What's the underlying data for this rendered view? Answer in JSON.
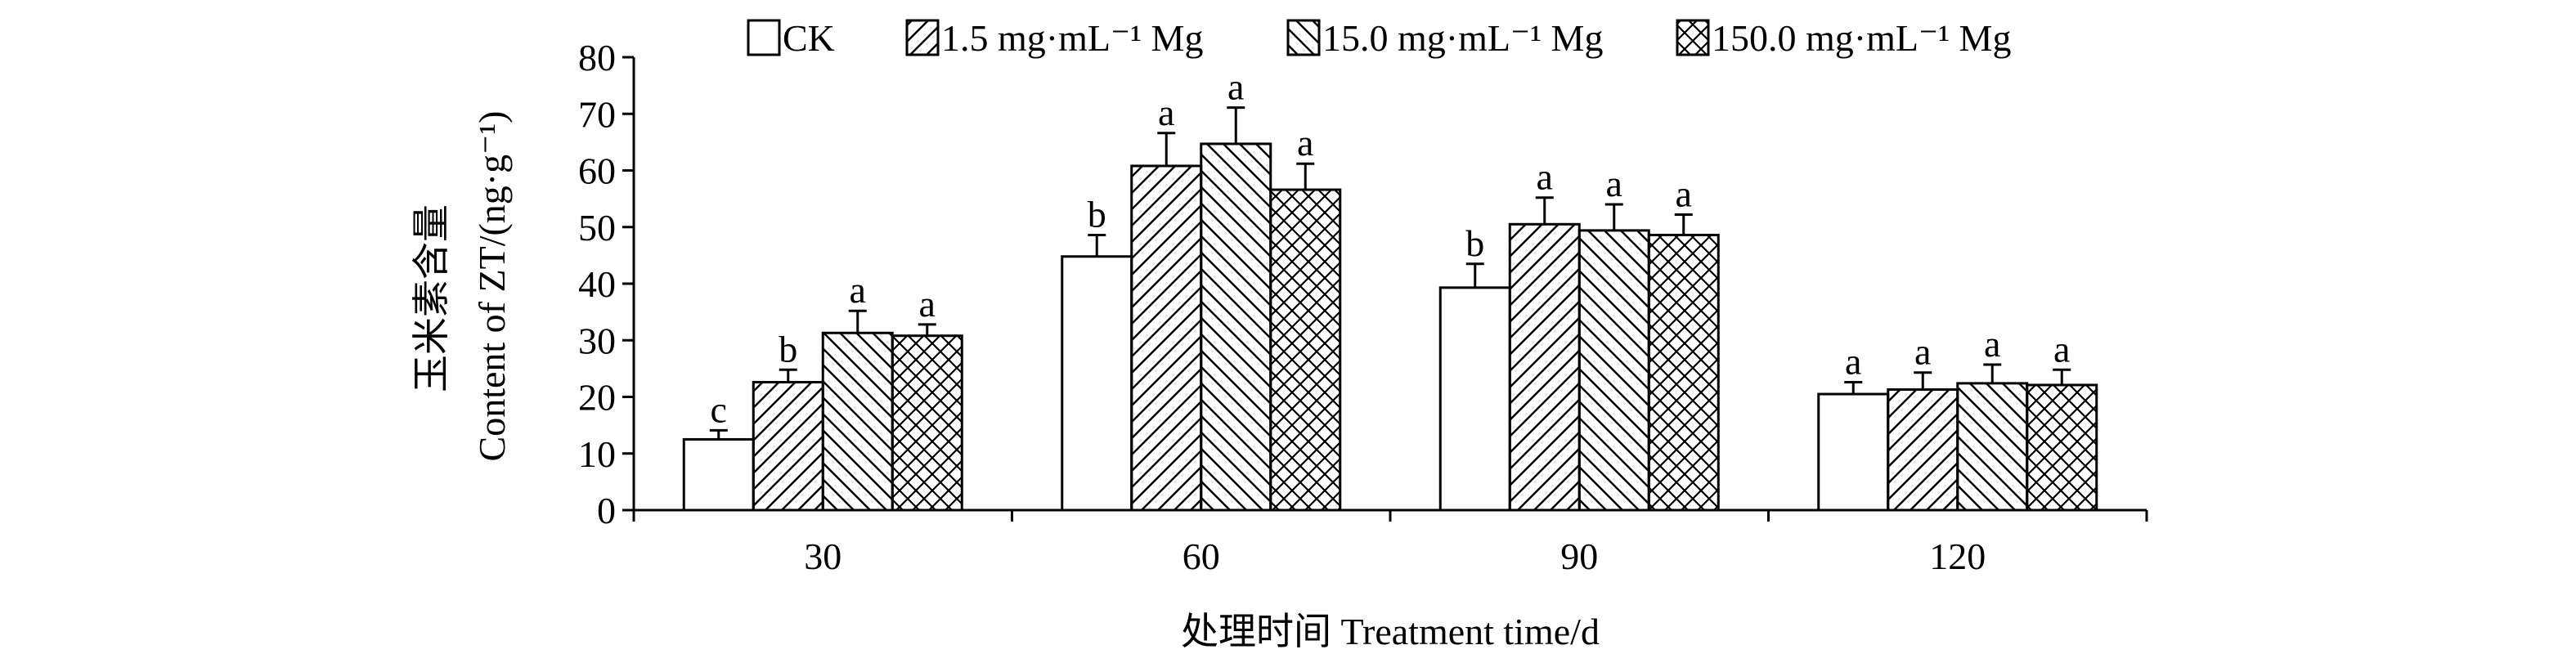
{
  "chart_data": {
    "type": "bar",
    "categories": [
      "30",
      "60",
      "90",
      "120"
    ],
    "series": [
      {
        "name": "CK",
        "pattern": "none",
        "values": [
          12.5,
          44.8,
          39.3,
          20.5
        ],
        "errors": [
          1.6,
          3.8,
          4.2,
          2.1
        ],
        "labels": [
          "c",
          "b",
          "b",
          "a"
        ]
      },
      {
        "name": "1.5 mg·mL⁻¹ Mg",
        "pattern": "forward-diagonal",
        "values": [
          22.6,
          60.8,
          50.5,
          21.3
        ],
        "errors": [
          2.2,
          5.8,
          4.7,
          3.0
        ],
        "labels": [
          "b",
          "a",
          "a",
          "a"
        ]
      },
      {
        "name": "15.0 mg·mL⁻¹ Mg",
        "pattern": "backward-diagonal",
        "values": [
          31.3,
          64.7,
          49.4,
          22.4
        ],
        "errors": [
          3.9,
          6.4,
          4.6,
          3.3
        ],
        "labels": [
          "a",
          "a",
          "a",
          "a"
        ]
      },
      {
        "name": "150.0 mg·mL⁻¹ Mg",
        "pattern": "crosshatch",
        "values": [
          30.8,
          56.6,
          48.6,
          22.1
        ],
        "errors": [
          2.0,
          4.6,
          3.6,
          2.7
        ],
        "labels": [
          "a",
          "a",
          "a",
          "a"
        ]
      }
    ],
    "title": "",
    "xlabel": "处理时间 Treatment time/d",
    "ylabel": [
      "玉米素含量",
      "Content of ZT/(ng·g⁻¹)"
    ],
    "ylim": [
      0,
      80
    ],
    "yticks": [
      "0",
      "10",
      "20",
      "30",
      "40",
      "50",
      "60",
      "70",
      "80"
    ],
    "grid": false,
    "legend_position": "top"
  }
}
